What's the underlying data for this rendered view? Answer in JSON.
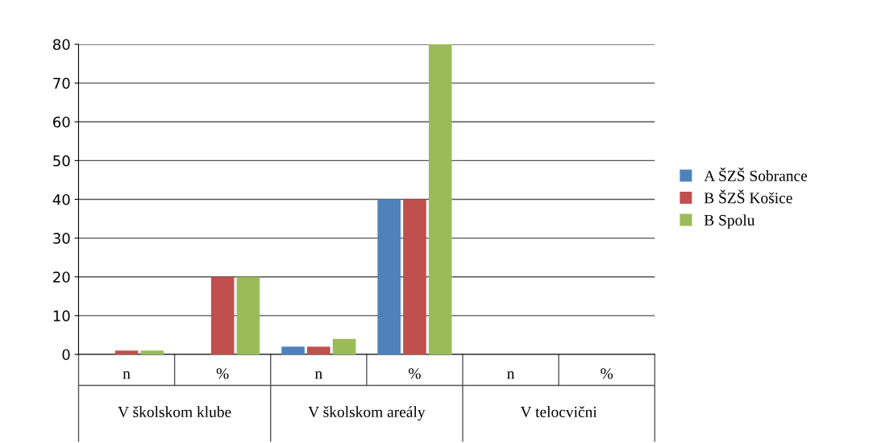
{
  "chart_data": {
    "type": "bar",
    "categories": [
      "n",
      "%",
      "n",
      "%",
      "n",
      "%"
    ],
    "series": [
      {
        "name": "A ŠZŠ Sobrance",
        "color": "#4f81bd",
        "values": [
          0,
          0,
          2,
          40,
          0,
          0
        ]
      },
      {
        "name": "B ŠZŠ Košice",
        "color": "#c0504d",
        "values": [
          1,
          20,
          2,
          40,
          0,
          0
        ]
      },
      {
        "name": "B Spolu",
        "color": "#9bbb59",
        "values": [
          1,
          20,
          4,
          80,
          0,
          0
        ]
      }
    ],
    "annotations": [
      "V školskom klube",
      "V školskom areály",
      "V telocvični"
    ],
    "ylim": [
      0,
      80
    ],
    "yticks": [
      0,
      10,
      20,
      30,
      40,
      50,
      60,
      70,
      80
    ],
    "grid": "y",
    "legend": "right"
  }
}
